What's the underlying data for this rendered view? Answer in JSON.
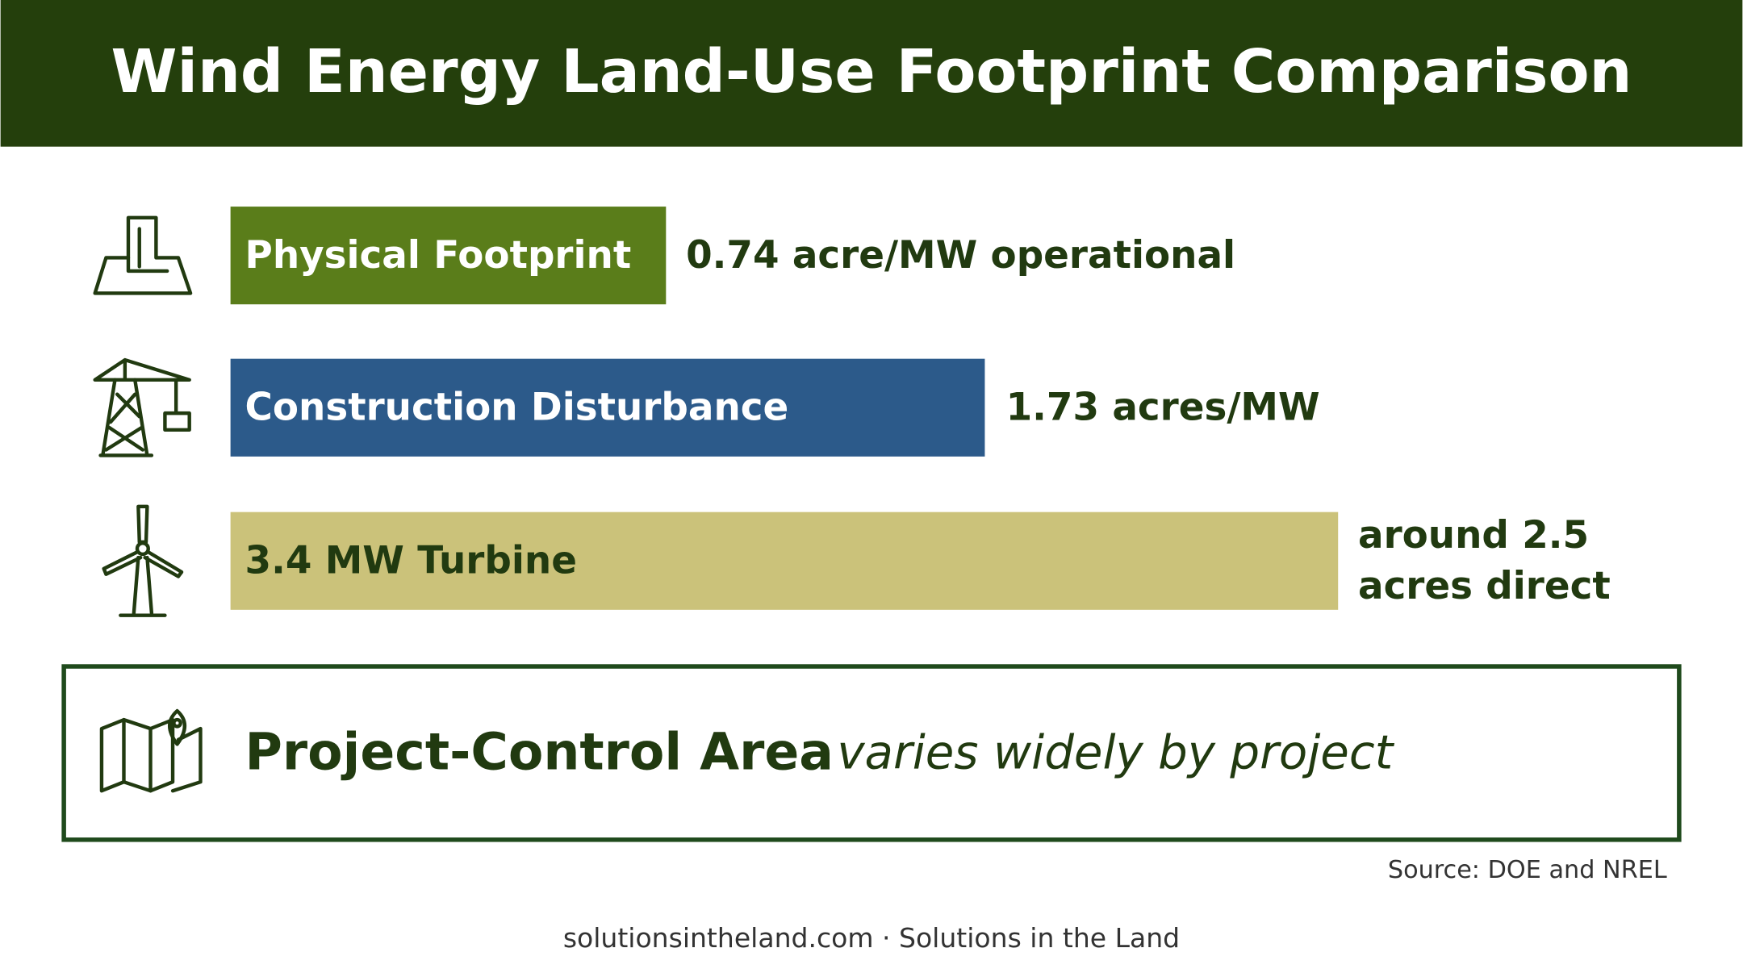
{
  "header": {
    "title": "Wind Energy Land-Use Footprint Comparison"
  },
  "rows": [
    {
      "label": "Physical Footprint",
      "value_lines": [
        "0.74 acre/MW operational"
      ]
    },
    {
      "label": "Construction Disturbance",
      "value_lines": [
        "1.73 acres/MW"
      ]
    },
    {
      "label": "3.4 MW Turbine",
      "value_lines": [
        "around 2.5",
        "acres direct"
      ]
    }
  ],
  "project_control": {
    "label": "Project-Control Area",
    "note": "varies widely by project"
  },
  "source": "Source: DOE and NREL",
  "footer": "solutionsintheland.com · Solutions in the Land"
}
